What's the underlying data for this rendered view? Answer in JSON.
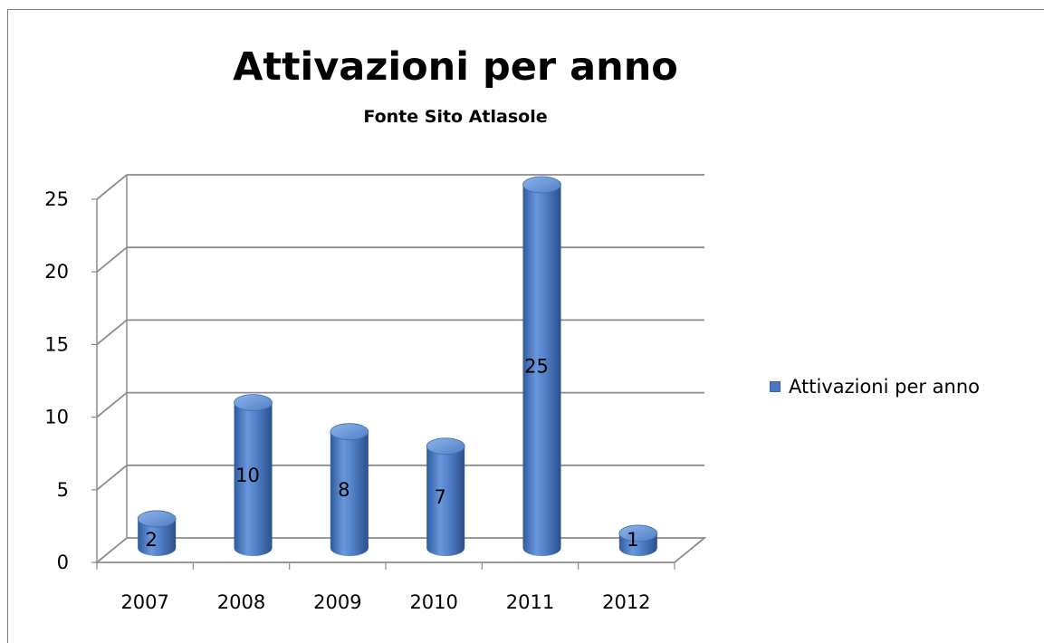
{
  "chart_data": {
    "type": "bar",
    "title": "Attivazioni per anno",
    "subtitle": "Fonte Sito Atlasole",
    "categories": [
      "2007",
      "2008",
      "2009",
      "2010",
      "2011",
      "2012"
    ],
    "series": [
      {
        "name": "Attivazioni per anno",
        "values": [
          2,
          10,
          8,
          7,
          25,
          1
        ]
      }
    ],
    "ylim": [
      0,
      25
    ],
    "yticks": [
      "0",
      "5",
      "10",
      "15",
      "20",
      "25"
    ],
    "grid": true,
    "legend": "right",
    "style": "3d-cylinder",
    "colors": {
      "bar": "#4a79c0",
      "bar_dark": "#2c5596",
      "bar_light": "#8fb3e8",
      "grid": "#8c8c8c"
    }
  }
}
